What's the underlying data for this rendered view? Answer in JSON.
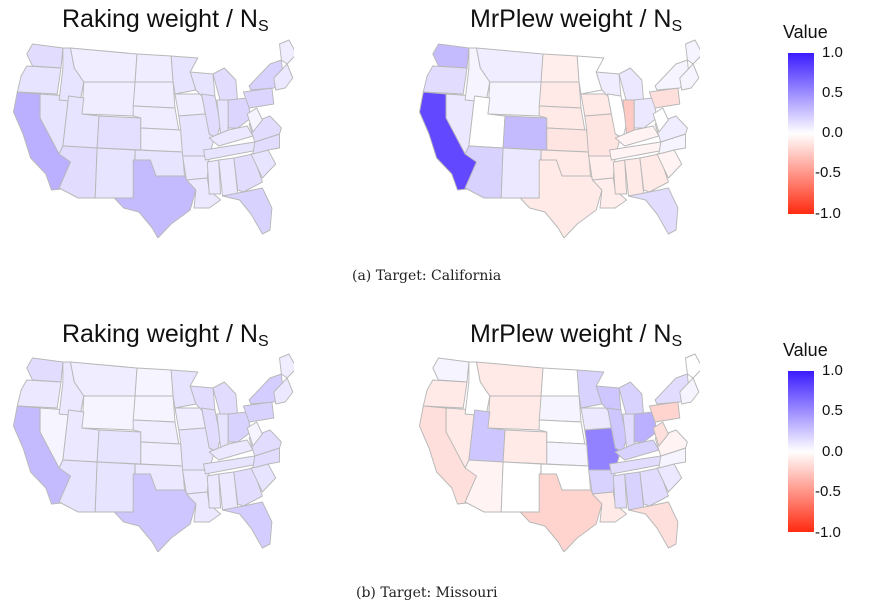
{
  "captions": {
    "a": "(a) Target: California",
    "b": "(b) Target: Missouri"
  },
  "legend": {
    "title": "Value",
    "ticks": [
      "1.0",
      "0.5",
      "0.0",
      "-0.5",
      "-1.0"
    ],
    "scale": [
      -1.0,
      1.0
    ],
    "high_color": "#3b1cff",
    "mid_color": "#ffffff",
    "low_color": "#ff2a10"
  },
  "chart_data": [
    {
      "type": "heatmap",
      "title": "Raking weight / N",
      "title_subscript": "S",
      "panel": "a",
      "default_value": 0.12,
      "values": {
        "WA": 0.15,
        "OR": 0.12,
        "CA": 0.35,
        "ID": 0.12,
        "NV": 0.12,
        "MT": 0.08,
        "WY": 0.08,
        "UT": 0.12,
        "AZ": 0.15,
        "CO": 0.14,
        "NM": 0.12,
        "ND": 0.08,
        "SD": 0.08,
        "NE": 0.08,
        "KS": 0.08,
        "OK": 0.12,
        "TX": 0.3,
        "MN": 0.12,
        "IA": 0.08,
        "MO": 0.12,
        "AR": 0.1,
        "LA": 0.1,
        "WI": 0.12,
        "IL": 0.15,
        "MI": 0.15,
        "IN": 0.12,
        "OH": 0.18,
        "KY": 0.1,
        "TN": 0.12,
        "MS": 0.1,
        "AL": 0.1,
        "GA": 0.15,
        "FL": 0.2,
        "SC": 0.12,
        "NC": 0.15,
        "VA": 0.15,
        "WV": 0.05,
        "PA": 0.18,
        "NY": 0.2,
        "ME": 0.08,
        "NE_REGION": 0.1
      }
    },
    {
      "type": "heatmap",
      "title": "MrPlew weight / N",
      "title_subscript": "S",
      "panel": "a",
      "default_value": 0.0,
      "values": {
        "WA": 0.3,
        "OR": 0.15,
        "CA": 0.8,
        "ID": 0.05,
        "NV": 0.1,
        "MT": 0.08,
        "WY": 0.05,
        "UT": 0.0,
        "AZ": 0.2,
        "CO": 0.3,
        "NM": 0.1,
        "ND": -0.08,
        "SD": -0.1,
        "NE": -0.1,
        "KS": -0.12,
        "OK": -0.1,
        "TX": -0.1,
        "MN": 0.0,
        "IA": -0.1,
        "MO": -0.12,
        "AR": -0.08,
        "LA": -0.08,
        "WI": 0.08,
        "IL": 0.0,
        "MI": 0.1,
        "IN": -0.25,
        "OH": 0.1,
        "KY": -0.05,
        "TN": -0.05,
        "MS": -0.1,
        "AL": -0.1,
        "GA": -0.1,
        "FL": 0.15,
        "SC": -0.05,
        "NC": 0.05,
        "VA": 0.08,
        "WV": 0.0,
        "PA": -0.15,
        "NY": 0.05,
        "ME": 0.05,
        "NE_REGION": 0.05
      }
    },
    {
      "type": "heatmap",
      "title": "Raking weight / N",
      "title_subscript": "S",
      "panel": "b",
      "default_value": 0.1,
      "values": {
        "WA": 0.15,
        "OR": 0.1,
        "CA": 0.3,
        "ID": 0.1,
        "NV": 0.05,
        "MT": 0.08,
        "WY": 0.05,
        "UT": 0.1,
        "AZ": 0.12,
        "CO": 0.12,
        "NM": 0.12,
        "ND": 0.05,
        "SD": 0.05,
        "NE": 0.08,
        "KS": 0.08,
        "OK": 0.1,
        "TX": 0.25,
        "MN": 0.12,
        "IA": 0.08,
        "MO": 0.12,
        "AR": 0.1,
        "LA": 0.1,
        "WI": 0.15,
        "IL": 0.15,
        "MI": 0.15,
        "IN": 0.12,
        "OH": 0.2,
        "KY": 0.1,
        "TN": 0.12,
        "MS": 0.1,
        "AL": 0.1,
        "GA": 0.15,
        "FL": 0.22,
        "SC": 0.12,
        "NC": 0.15,
        "VA": 0.15,
        "WV": 0.05,
        "PA": 0.2,
        "NY": 0.22,
        "ME": 0.08,
        "NE_REGION": 0.1
      }
    },
    {
      "type": "heatmap",
      "title": "MrPlew weight / N",
      "title_subscript": "S",
      "panel": "b",
      "default_value": 0.0,
      "values": {
        "WA": 0.05,
        "OR": -0.1,
        "CA": -0.15,
        "ID": 0.0,
        "NV": -0.1,
        "MT": -0.1,
        "WY": -0.1,
        "UT": 0.25,
        "AZ": -0.05,
        "CO": -0.1,
        "NM": 0.0,
        "ND": 0.0,
        "SD": 0.05,
        "NE": 0.0,
        "KS": 0.05,
        "OK": 0.0,
        "TX": -0.2,
        "MN": 0.2,
        "IA": 0.1,
        "MO": 0.55,
        "AR": 0.2,
        "LA": -0.1,
        "WI": 0.25,
        "IL": 0.25,
        "MI": 0.2,
        "IN": 0.15,
        "OH": 0.35,
        "KY": 0.2,
        "TN": 0.15,
        "MS": 0.15,
        "AL": 0.2,
        "GA": 0.15,
        "FL": -0.15,
        "SC": 0.1,
        "NC": 0.05,
        "VA": -0.05,
        "WV": -0.15,
        "PA": -0.2,
        "NY": 0.15,
        "ME": 0.0,
        "NE_REGION": 0.05
      }
    }
  ]
}
